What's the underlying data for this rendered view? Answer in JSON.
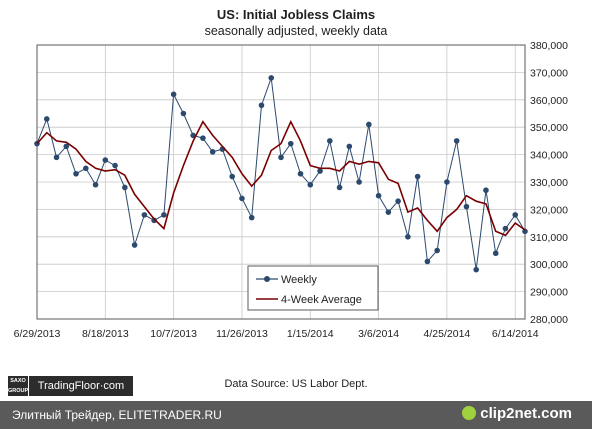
{
  "footer": {
    "watermark_text": "Элитный Трейдер, ELITETRADER.RU",
    "logo_text": "clip2net.com"
  },
  "branding": {
    "saxo_label": "SAXO GROUP",
    "tradingfloor_label": "TradingFloor·com"
  },
  "colors": {
    "weekly": "#2c4a6e",
    "average": "#7a0000",
    "grid": "#c8c8c8",
    "axis": "#5a5a5a",
    "footer_bg": "#5a5a5a"
  },
  "chart_data": {
    "type": "line",
    "title": "US: Initial Jobless Claims",
    "subtitle": "seasonally  adjusted,  weekly data",
    "source": "Data Source: US Labor Dept.",
    "x_tick_labels": [
      "6/29/2013",
      "8/18/2013",
      "10/7/2013",
      "11/26/2013",
      "1/15/2014",
      "3/6/2014",
      "4/25/2014",
      "6/14/2014"
    ],
    "y_tick_labels": [
      "280,000",
      "290,000",
      "300,000",
      "310,000",
      "320,000",
      "330,000",
      "340,000",
      "350,000",
      "360,000",
      "370,000",
      "380,000"
    ],
    "ylim": [
      280000,
      380000
    ],
    "grid": true,
    "legend_position": "bottom-center",
    "series": [
      {
        "name": "Weekly",
        "marker": "circle",
        "values": [
          344000,
          353000,
          339000,
          343000,
          333000,
          335000,
          329000,
          338000,
          336000,
          328000,
          307000,
          318000,
          316000,
          318000,
          362000,
          355000,
          347000,
          346000,
          341000,
          342000,
          332000,
          324000,
          317000,
          358000,
          368000,
          339000,
          344000,
          333000,
          329000,
          334000,
          345000,
          328000,
          343000,
          330000,
          351000,
          325000,
          319000,
          323000,
          310000,
          332000,
          301000,
          305000,
          330000,
          345000,
          321000,
          298000,
          327000,
          304000,
          313000,
          318000,
          312000
        ]
      },
      {
        "name": "4-Week Average",
        "marker": "none",
        "values": [
          344000,
          348000,
          345000,
          344500,
          342000,
          337500,
          335000,
          334000,
          334500,
          332500,
          325500,
          321000,
          316500,
          313000,
          326000,
          336000,
          345000,
          352000,
          347000,
          343000,
          339000,
          333000,
          328500,
          332500,
          341500,
          344000,
          352000,
          345000,
          336000,
          335000,
          335000,
          334000,
          337500,
          336500,
          337500,
          337000,
          331000,
          329500,
          319000,
          320500,
          316000,
          312000,
          317000,
          320000,
          325000,
          323000,
          322000,
          312000,
          310500,
          315000,
          312500
        ]
      }
    ]
  }
}
